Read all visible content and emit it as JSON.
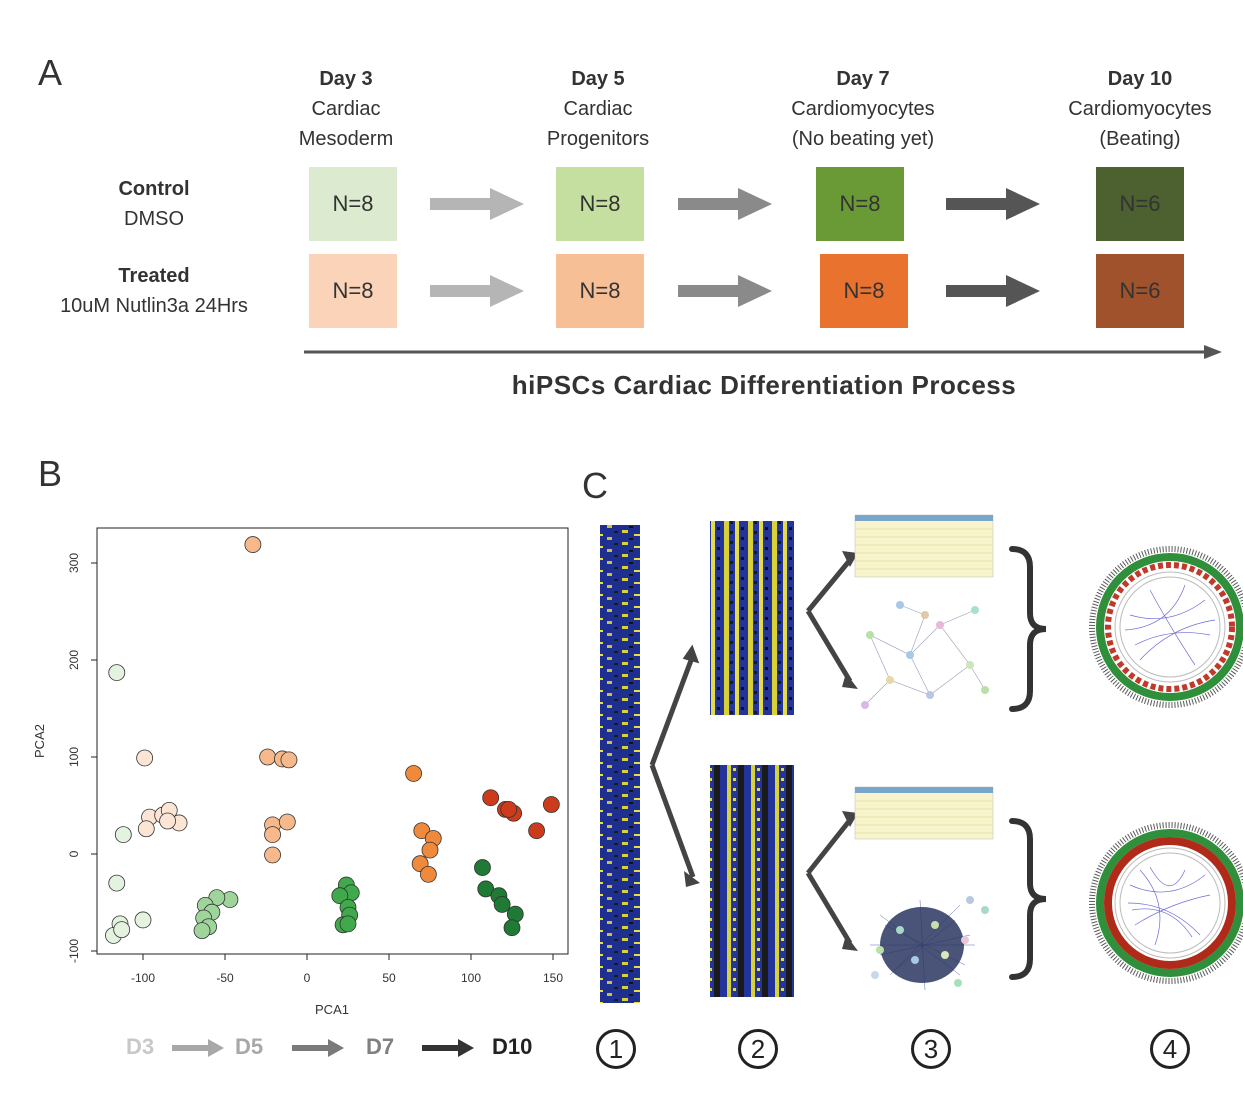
{
  "panelA": {
    "letter": "A",
    "stages": [
      {
        "day": "Day 3",
        "line1": "Cardiac",
        "line2": "Mesoderm"
      },
      {
        "day": "Day 5",
        "line1": "Cardiac",
        "line2": "Progenitors"
      },
      {
        "day": "Day 7",
        "line1": "Cardiomyocytes",
        "line2": "(No beating yet)"
      },
      {
        "day": "Day 10",
        "line1": "Cardiomyocytes",
        "line2": "(Beating)"
      }
    ],
    "rows": [
      {
        "label": "Control",
        "sublabel": "DMSO",
        "boxes": [
          {
            "text": "N=8",
            "color": "#dcebcf"
          },
          {
            "text": "N=8",
            "color": "#c4df9f"
          },
          {
            "text": "N=8",
            "color": "#6a9a35"
          },
          {
            "text": "N=6",
            "color": "#4c6030"
          }
        ]
      },
      {
        "label": "Treated",
        "sublabel": "10uM Nutlin3a 24Hrs",
        "boxes": [
          {
            "text": "N=8",
            "color": "#fbd3b8"
          },
          {
            "text": "N=8",
            "color": "#f7bf95"
          },
          {
            "text": "N=8",
            "color": "#e8722e"
          },
          {
            "text": "N=6",
            "color": "#a0522d"
          }
        ]
      }
    ],
    "timeline_label": "hiPSCs Cardiac Differentiation Process"
  },
  "panelB": {
    "letter": "B",
    "legend": [
      {
        "label": "D3",
        "color": "#c8c8c8"
      },
      {
        "label": "D5",
        "color": "#a8a8a8"
      },
      {
        "label": "D7",
        "color": "#808080"
      },
      {
        "label": "D10",
        "color": "#222222"
      }
    ]
  },
  "panelC": {
    "letter": "C",
    "steps": [
      "1",
      "2",
      "3",
      "4"
    ]
  },
  "chart_data": {
    "type": "scatter",
    "xlabel": "PCA1",
    "ylabel": "PCA2",
    "xlim": [
      -125,
      155
    ],
    "ylim": [
      -100,
      335
    ],
    "xticks": [
      -100,
      -50,
      0,
      50,
      100,
      150
    ],
    "yticks": [
      -100,
      0,
      100,
      200,
      300
    ],
    "grid": false,
    "series": [
      {
        "color": "#e4f3df",
        "points": [
          [
            -116,
            187
          ],
          [
            -112,
            20
          ],
          [
            -116,
            -30
          ],
          [
            -114,
            -72
          ],
          [
            -118,
            -84
          ],
          [
            -113,
            -78
          ],
          [
            -100,
            -68
          ]
        ]
      },
      {
        "color": "#fde5d5",
        "points": [
          [
            -99,
            99
          ],
          [
            -96,
            38
          ],
          [
            -98,
            26
          ],
          [
            -88,
            40
          ],
          [
            -84,
            45
          ],
          [
            -78,
            32
          ],
          [
            -85,
            34
          ]
        ]
      },
      {
        "color": "#9fd49b",
        "points": [
          [
            -47,
            -47
          ],
          [
            -55,
            -45
          ],
          [
            -62,
            -53
          ],
          [
            -58,
            -60
          ],
          [
            -63,
            -66
          ],
          [
            -60,
            -75
          ],
          [
            -64,
            -79
          ]
        ]
      },
      {
        "color": "#f7b98b",
        "points": [
          [
            -33,
            319
          ],
          [
            -24,
            100
          ],
          [
            -15,
            98
          ],
          [
            -11,
            97
          ],
          [
            -21,
            30
          ],
          [
            -21,
            20
          ],
          [
            -12,
            33
          ],
          [
            -21,
            -1
          ]
        ]
      },
      {
        "color": "#3fa94c",
        "points": [
          [
            24,
            -32
          ],
          [
            27,
            -40
          ],
          [
            20,
            -43
          ],
          [
            25,
            -55
          ],
          [
            26,
            -63
          ],
          [
            22,
            -73
          ],
          [
            25,
            -72
          ]
        ]
      },
      {
        "color": "#ef8a3c",
        "points": [
          [
            65,
            83
          ],
          [
            70,
            24
          ],
          [
            77,
            16
          ],
          [
            75,
            4
          ],
          [
            69,
            -10
          ],
          [
            74,
            -21
          ]
        ]
      },
      {
        "color": "#1e7a34",
        "points": [
          [
            107,
            -14
          ],
          [
            109,
            -36
          ],
          [
            117,
            -43
          ],
          [
            119,
            -52
          ],
          [
            127,
            -62
          ],
          [
            125,
            -76
          ]
        ]
      },
      {
        "color": "#cc3b1c",
        "points": [
          [
            112,
            58
          ],
          [
            121,
            46
          ],
          [
            126,
            42
          ],
          [
            123,
            46
          ],
          [
            149,
            51
          ],
          [
            140,
            24
          ]
        ]
      }
    ]
  }
}
